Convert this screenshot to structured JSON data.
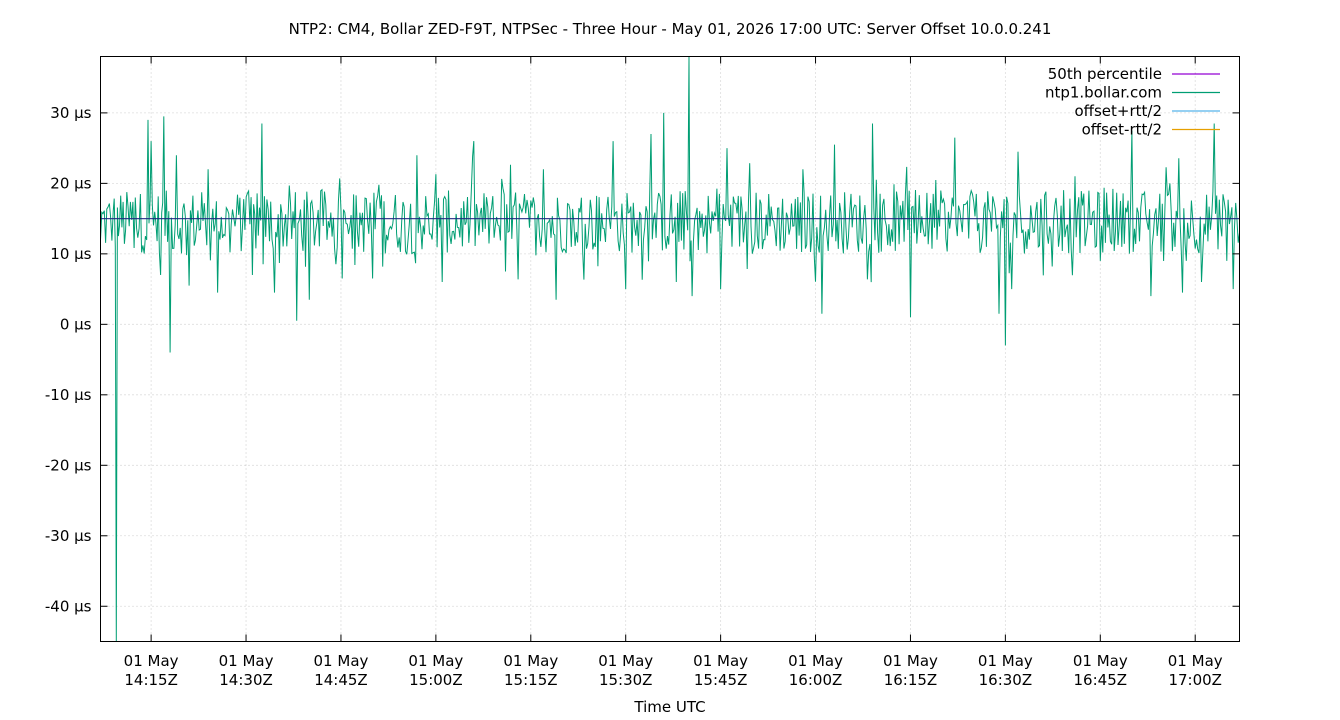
{
  "chart_data": {
    "type": "line",
    "title": "NTP2: CM4, Bollar ZED-F9T, NTPSec - Three Hour - May 01, 2026 17:00 UTC: Server Offset 10.0.0.241",
    "xlabel": "Time UTC",
    "ylabel": "",
    "xlim": [
      "2026-05-01T14:07:00Z",
      "2026-05-01T17:07:00Z"
    ],
    "ylim": [
      -45,
      38
    ],
    "grid": true,
    "legend_position": "top-right",
    "y_ticks": [
      {
        "value": 30,
        "label": "30 µs"
      },
      {
        "value": 20,
        "label": "20 µs"
      },
      {
        "value": 10,
        "label": "10 µs"
      },
      {
        "value": 0,
        "label": "0 µs"
      },
      {
        "value": -10,
        "label": "-10 µs"
      },
      {
        "value": -20,
        "label": "-20 µs"
      },
      {
        "value": -30,
        "label": "-30 µs"
      },
      {
        "value": -40,
        "label": "-40 µs"
      }
    ],
    "x_ticks": [
      {
        "value": "2026-05-01T14:15:00Z",
        "line1": "01 May",
        "line2": "14:15Z"
      },
      {
        "value": "2026-05-01T14:30:00Z",
        "line1": "01 May",
        "line2": "14:30Z"
      },
      {
        "value": "2026-05-01T14:45:00Z",
        "line1": "01 May",
        "line2": "14:45Z"
      },
      {
        "value": "2026-05-01T15:00:00Z",
        "line1": "01 May",
        "line2": "15:00Z"
      },
      {
        "value": "2026-05-01T15:15:00Z",
        "line1": "01 May",
        "line2": "15:15Z"
      },
      {
        "value": "2026-05-01T15:30:00Z",
        "line1": "01 May",
        "line2": "15:30Z"
      },
      {
        "value": "2026-05-01T15:45:00Z",
        "line1": "01 May",
        "line2": "15:45Z"
      },
      {
        "value": "2026-05-01T16:00:00Z",
        "line1": "01 May",
        "line2": "16:00Z"
      },
      {
        "value": "2026-05-01T16:15:00Z",
        "line1": "01 May",
        "line2": "16:15Z"
      },
      {
        "value": "2026-05-01T16:30:00Z",
        "line1": "01 May",
        "line2": "16:30Z"
      },
      {
        "value": "2026-05-01T16:45:00Z",
        "line1": "01 May",
        "line2": "16:45Z"
      },
      {
        "value": "2026-05-01T17:00:00Z",
        "line1": "01 May",
        "line2": "17:00Z"
      }
    ],
    "series": [
      {
        "name": "50th percentile",
        "color": "#9400d3",
        "values": [
          15,
          15
        ]
      },
      {
        "name": "ntp1.bollar.com",
        "color": "#009e73",
        "values": [
          {
            "x": "2026-05-01T14:07:00Z",
            "y": 12
          },
          {
            "x": "2026-05-01T14:09:00Z",
            "y": 16
          },
          {
            "x": "2026-05-01T14:09:30Z",
            "y": -45
          },
          {
            "x": "2026-05-01T14:10:00Z",
            "y": 14
          },
          {
            "x": "2026-05-01T14:12:30Z",
            "y": 18
          },
          {
            "x": "2026-05-01T14:14:30Z",
            "y": 29
          },
          {
            "x": "2026-05-01T14:15:00Z",
            "y": 26
          },
          {
            "x": "2026-05-01T14:16:30Z",
            "y": 7
          },
          {
            "x": "2026-05-01T14:17:00Z",
            "y": 29.5
          },
          {
            "x": "2026-05-01T14:18:00Z",
            "y": -4
          },
          {
            "x": "2026-05-01T14:19:00Z",
            "y": 24
          },
          {
            "x": "2026-05-01T14:21:00Z",
            "y": 5.5
          },
          {
            "x": "2026-05-01T14:24:00Z",
            "y": 22
          },
          {
            "x": "2026-05-01T14:25:30Z",
            "y": 4.5
          },
          {
            "x": "2026-05-01T14:31:00Z",
            "y": 7
          },
          {
            "x": "2026-05-01T14:32:30Z",
            "y": 28.5
          },
          {
            "x": "2026-05-01T14:34:30Z",
            "y": 4.5
          },
          {
            "x": "2026-05-01T14:38:00Z",
            "y": 0.5
          },
          {
            "x": "2026-05-01T14:40:00Z",
            "y": 3.5
          },
          {
            "x": "2026-05-01T14:50:00Z",
            "y": 6.5
          },
          {
            "x": "2026-05-01T14:57:00Z",
            "y": 24
          },
          {
            "x": "2026-05-01T15:01:00Z",
            "y": 6
          },
          {
            "x": "2026-05-01T15:06:00Z",
            "y": 26
          },
          {
            "x": "2026-05-01T15:11:00Z",
            "y": 7.5
          },
          {
            "x": "2026-05-01T15:17:00Z",
            "y": 22
          },
          {
            "x": "2026-05-01T15:19:00Z",
            "y": 3.5
          },
          {
            "x": "2026-05-01T15:28:00Z",
            "y": 26
          },
          {
            "x": "2026-05-01T15:30:00Z",
            "y": 5
          },
          {
            "x": "2026-05-01T15:34:00Z",
            "y": 27
          },
          {
            "x": "2026-05-01T15:36:00Z",
            "y": 30
          },
          {
            "x": "2026-05-01T15:38:00Z",
            "y": 6
          },
          {
            "x": "2026-05-01T15:40:00Z",
            "y": 38
          },
          {
            "x": "2026-05-01T15:40:30Z",
            "y": 4
          },
          {
            "x": "2026-05-01T15:45:00Z",
            "y": 5
          },
          {
            "x": "2026-05-01T15:46:00Z",
            "y": 25
          },
          {
            "x": "2026-05-01T15:58:00Z",
            "y": 22
          },
          {
            "x": "2026-05-01T16:01:00Z",
            "y": 1.5
          },
          {
            "x": "2026-05-01T16:03:00Z",
            "y": 25.5
          },
          {
            "x": "2026-05-01T16:09:00Z",
            "y": 28.5
          },
          {
            "x": "2026-05-01T16:15:00Z",
            "y": 1
          },
          {
            "x": "2026-05-01T16:22:00Z",
            "y": 26.5
          },
          {
            "x": "2026-05-01T16:29:00Z",
            "y": 1.5
          },
          {
            "x": "2026-05-01T16:30:00Z",
            "y": -3
          },
          {
            "x": "2026-05-01T16:31:00Z",
            "y": 5
          },
          {
            "x": "2026-05-01T16:32:00Z",
            "y": 24.5
          },
          {
            "x": "2026-05-01T16:41:00Z",
            "y": 21
          },
          {
            "x": "2026-05-01T16:45:00Z",
            "y": 9
          },
          {
            "x": "2026-05-01T16:50:00Z",
            "y": 27.5
          },
          {
            "x": "2026-05-01T16:53:00Z",
            "y": 4
          },
          {
            "x": "2026-05-01T16:56:00Z",
            "y": 20
          },
          {
            "x": "2026-05-01T16:58:00Z",
            "y": 4.5
          },
          {
            "x": "2026-05-01T17:01:00Z",
            "y": 6
          },
          {
            "x": "2026-05-01T17:03:00Z",
            "y": 28.5
          },
          {
            "x": "2026-05-01T17:05:00Z",
            "y": 9
          },
          {
            "x": "2026-05-01T17:06:00Z",
            "y": 5
          },
          {
            "x": "2026-05-01T17:07:00Z",
            "y": 13
          }
        ]
      },
      {
        "name": "offset+rtt/2",
        "color": "#56b4e9",
        "values": []
      },
      {
        "name": "offset-rtt/2",
        "color": "#e69f00",
        "values": []
      }
    ]
  }
}
